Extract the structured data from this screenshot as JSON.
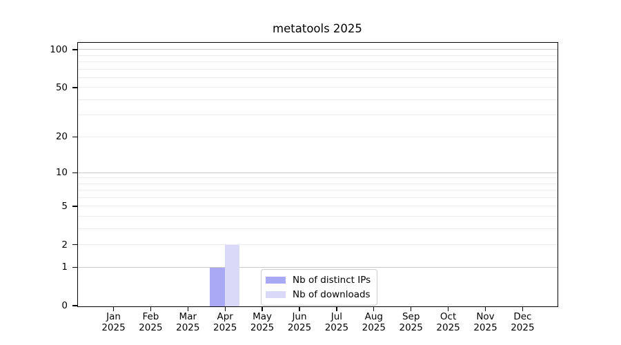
{
  "figure": {
    "background": "#ffffff"
  },
  "chart_data": {
    "type": "bar",
    "title": "metatools 2025",
    "x_categories": [
      "Jan",
      "Feb",
      "Mar",
      "Apr",
      "May",
      "Jun",
      "Jul",
      "Aug",
      "Sep",
      "Oct",
      "Nov",
      "Dec"
    ],
    "x_year": "2025",
    "series": [
      {
        "name": "Nb of distinct IPs",
        "color": "#a8a8f4",
        "values": [
          0,
          0,
          0,
          1,
          0,
          0,
          0,
          0,
          0,
          0,
          0,
          0
        ]
      },
      {
        "name": "Nb of downloads",
        "color": "#dadaf8",
        "values": [
          0,
          0,
          0,
          2,
          0,
          0,
          0,
          0,
          0,
          0,
          0,
          0
        ]
      }
    ],
    "y_scale": "log1p",
    "y_axis_top_value": 112.6,
    "y_tick_values": [
      0,
      1,
      2,
      5,
      10,
      20,
      50,
      100
    ],
    "y_tick_labels": [
      "0",
      "1",
      "2",
      "5",
      "10",
      "20",
      "50",
      "100"
    ],
    "y_major_grid_values": [
      1,
      10,
      100
    ],
    "y_minor_grid_values": [
      2,
      3,
      4,
      5,
      6,
      7,
      8,
      9,
      20,
      30,
      40,
      50,
      60,
      70,
      80,
      90
    ],
    "grid": true,
    "legend_position": "lower center",
    "colors": {
      "major_grid": "#c9c9c9",
      "minor_grid": "#ececec",
      "spine": "#000000",
      "text": "#000000",
      "legend_border": "#cccccc",
      "legend_bg": "#ffffff"
    }
  }
}
